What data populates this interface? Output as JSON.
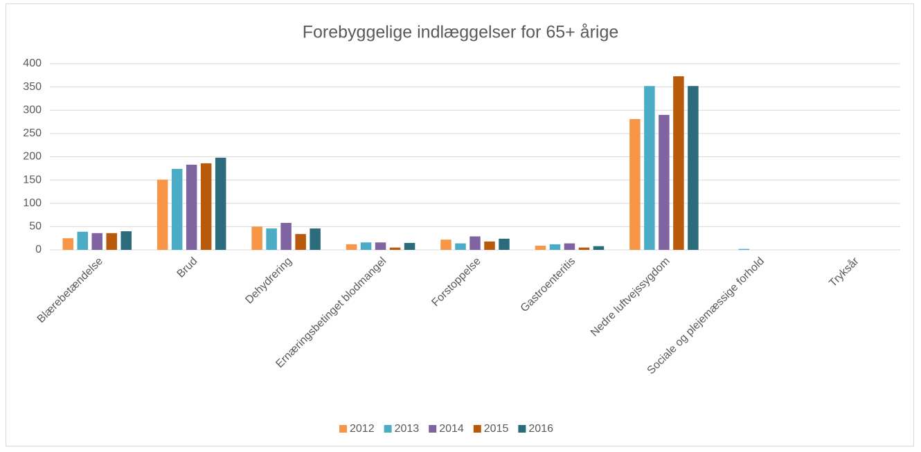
{
  "chart_data": {
    "type": "bar",
    "title": "Forebyggelige indlæggelser for 65+ årige",
    "categories": [
      "Blærebetændelse",
      "Brud",
      "Dehydrering",
      "Ernæringsbetinget blodmangel",
      "Forstoppelse",
      "Gastroenteritis",
      "Nedre luftvejssygdom",
      "Sociale og plejemæssige forhold",
      "Tryksår"
    ],
    "series": [
      {
        "name": "2012",
        "color": "#f79646",
        "values": [
          25,
          151,
          50,
          12,
          22,
          9,
          281,
          0,
          0
        ]
      },
      {
        "name": "2013",
        "color": "#4bacc6",
        "values": [
          39,
          174,
          46,
          16,
          14,
          12,
          352,
          2,
          0
        ]
      },
      {
        "name": "2014",
        "color": "#8064a2",
        "values": [
          36,
          183,
          58,
          16,
          29,
          14,
          290,
          0,
          0
        ]
      },
      {
        "name": "2015",
        "color": "#b9590c",
        "values": [
          36,
          186,
          34,
          5,
          18,
          5,
          373,
          0,
          0
        ]
      },
      {
        "name": "2016",
        "color": "#2a6b7c",
        "values": [
          40,
          198,
          46,
          15,
          24,
          8,
          352,
          0,
          0
        ]
      }
    ],
    "ylim": [
      0,
      400
    ],
    "yticks": [
      0,
      50,
      100,
      150,
      200,
      250,
      300,
      350,
      400
    ],
    "grid": true,
    "legend": "bottom"
  }
}
